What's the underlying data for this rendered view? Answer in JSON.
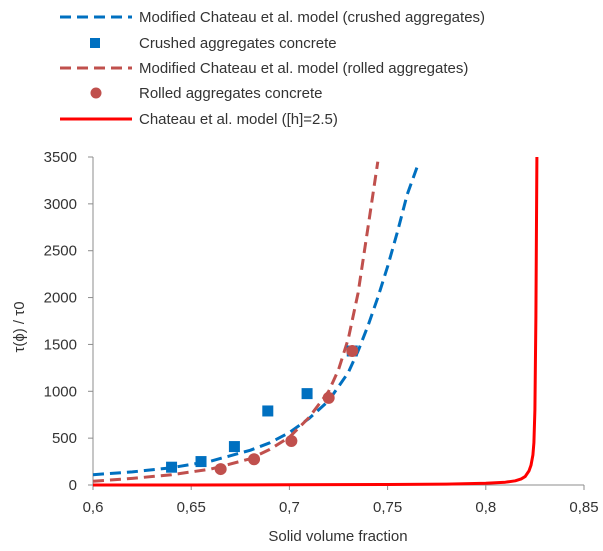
{
  "chart_data": {
    "type": "scatter",
    "xlabel": "Solid volume fraction",
    "ylabel": "τ(ϕ) / τ0",
    "xlim": [
      0.6,
      0.85
    ],
    "ylim": [
      0,
      3500
    ],
    "x_ticks": [
      "0,6",
      "0,65",
      "0,7",
      "0,75",
      "0,8",
      "0,85"
    ],
    "y_ticks": [
      "0",
      "500",
      "1000",
      "1500",
      "2000",
      "2500",
      "3000",
      "3500"
    ],
    "grid": false,
    "legend_position": "top",
    "series": [
      {
        "name": "Modified Chateau et al. model (crushed aggregates)",
        "style": "dashed-line",
        "color": "#0070C0",
        "x": [
          0.6,
          0.62,
          0.64,
          0.66,
          0.68,
          0.69,
          0.7,
          0.71,
          0.72,
          0.73,
          0.735,
          0.74,
          0.745,
          0.75,
          0.755,
          0.76,
          0.7655
        ],
        "y": [
          110,
          140,
          185,
          255,
          370,
          450,
          560,
          710,
          900,
          1200,
          1430,
          1700,
          2000,
          2330,
          2700,
          3100,
          3420
        ]
      },
      {
        "name": "Crushed aggregates concrete",
        "style": "square-marker",
        "color": "#0070C0",
        "x": [
          0.64,
          0.655,
          0.672,
          0.689,
          0.709,
          0.732
        ],
        "y": [
          190,
          250,
          410,
          790,
          975,
          1430
        ]
      },
      {
        "name": "Modified Chateau et al. model (rolled aggregates)",
        "style": "dashed-line",
        "color": "#C0504D",
        "x": [
          0.6,
          0.62,
          0.64,
          0.66,
          0.68,
          0.69,
          0.7,
          0.71,
          0.72,
          0.725,
          0.73,
          0.735,
          0.74,
          0.745
        ],
        "y": [
          40,
          70,
          110,
          170,
          280,
          380,
          510,
          720,
          1000,
          1230,
          1560,
          2050,
          2750,
          3450
        ]
      },
      {
        "name": "Rolled aggregates concrete",
        "style": "circle-marker",
        "color": "#C0504D",
        "x": [
          0.665,
          0.682,
          0.701,
          0.72,
          0.732
        ],
        "y": [
          170,
          275,
          470,
          930,
          1430
        ]
      },
      {
        "name": "Chateau et al. model ([h]=2.5)",
        "style": "solid-line",
        "color": "#FF0000",
        "x": [
          0.6,
          0.65,
          0.7,
          0.75,
          0.78,
          0.8,
          0.81,
          0.815,
          0.818,
          0.82,
          0.822,
          0.823,
          0.824,
          0.8245,
          0.825,
          0.8255,
          0.826
        ],
        "y": [
          0,
          0,
          2,
          5,
          10,
          18,
          30,
          45,
          65,
          90,
          150,
          210,
          320,
          450,
          800,
          1800,
          3500
        ]
      }
    ]
  }
}
